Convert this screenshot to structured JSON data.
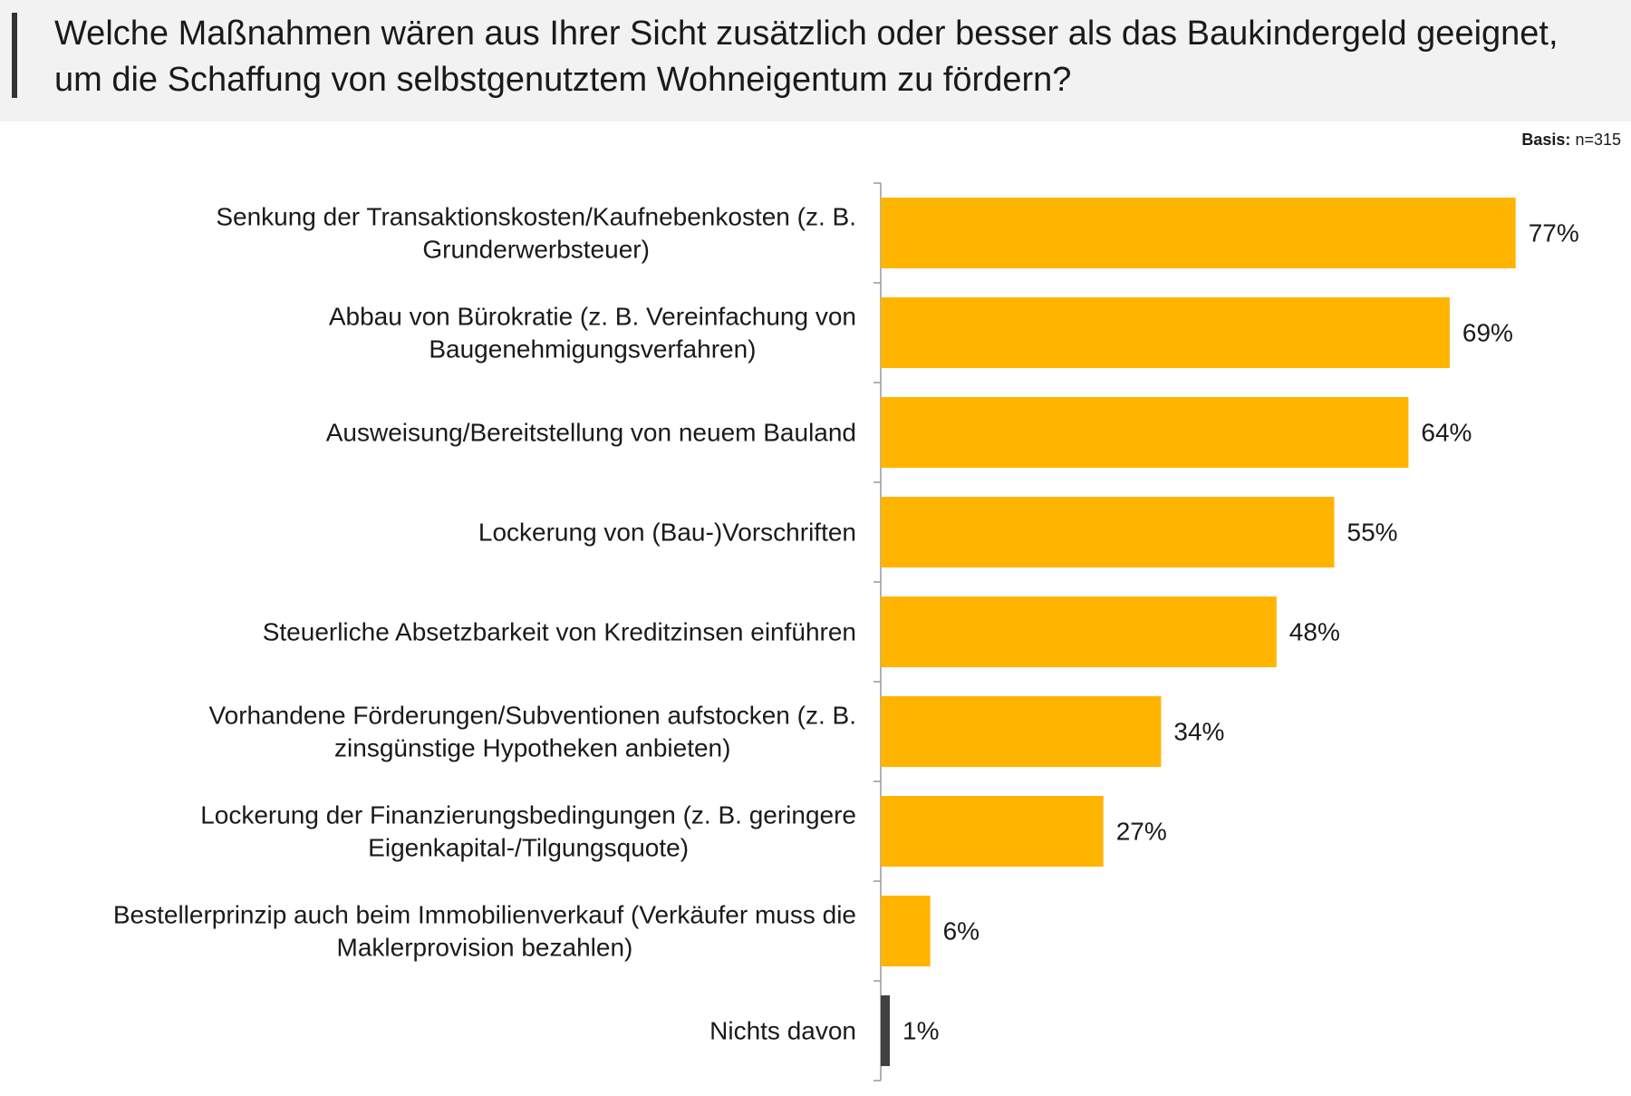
{
  "header": {
    "question": "Welche Maßnahmen wären aus Ihrer Sicht zusätzlich oder besser als das Baukindergeld geeignet, um die Schaffung von selbstgenutztem Wohneigentum zu fördern?"
  },
  "basis": {
    "label": "Basis:",
    "value": "n=315"
  },
  "colors": {
    "bar": "#FFB400",
    "bar_none": "#404040",
    "axis": "#999999",
    "text": "#1a1a1a",
    "header_bg": "#f2f2f2"
  },
  "chart_data": {
    "type": "bar",
    "orientation": "horizontal",
    "title": "",
    "xlabel": "",
    "ylabel": "",
    "grid": false,
    "legend": "none",
    "xlim": [
      0,
      100
    ],
    "unit": "%",
    "categories": [
      [
        "Senkung der Transaktionskosten/Kaufnebenkosten (z. B.",
        "Grunderwerbsteuer)"
      ],
      [
        "Abbau von Bürokratie (z. B. Vereinfachung von",
        "Baugenehmigungsverfahren)"
      ],
      [
        "Ausweisung/Bereitstellung von neuem Bauland"
      ],
      [
        "Lockerung von (Bau-)Vorschriften"
      ],
      [
        "Steuerliche Absetzbarkeit von Kreditzinsen einführen"
      ],
      [
        "Vorhandene Förderungen/Subventionen aufstocken (z. B.",
        "zinsgünstige Hypotheken anbieten)"
      ],
      [
        "Lockerung der Finanzierungsbedingungen (z. B. geringere",
        "Eigenkapital-/Tilgungsquote)"
      ],
      [
        "Bestellerprinzip auch beim Immobilienverkauf (Verkäufer muss die",
        "Maklerprovision bezahlen)"
      ],
      [
        "Nichts davon"
      ]
    ],
    "values": [
      77,
      69,
      64,
      55,
      48,
      34,
      27,
      6,
      1
    ],
    "value_labels": [
      "77%",
      "69%",
      "64%",
      "55%",
      "48%",
      "34%",
      "27%",
      "6%",
      "1%"
    ],
    "bar_colors": [
      "#FFB400",
      "#FFB400",
      "#FFB400",
      "#FFB400",
      "#FFB400",
      "#FFB400",
      "#FFB400",
      "#FFB400",
      "#404040"
    ]
  }
}
